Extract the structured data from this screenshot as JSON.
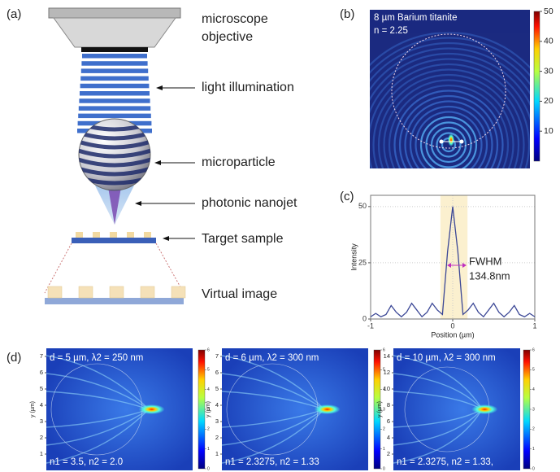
{
  "panel_a": {
    "label": "(a)",
    "annotations": [
      {
        "lines": [
          "microscope",
          "objective"
        ]
      },
      {
        "lines": [
          "light illumination"
        ]
      },
      {
        "lines": [
          "microparticle"
        ]
      },
      {
        "lines": [
          "photonic nanojet"
        ]
      },
      {
        "lines": [
          "Target sample"
        ]
      },
      {
        "lines": [
          "Virtual image"
        ]
      }
    ]
  },
  "panel_b": {
    "label": "(b)",
    "material": "8 µm Barium titanite",
    "index": "n = 2.25",
    "colorbar_lim": [
      0,
      50
    ],
    "colorbar_ticks": [
      10,
      20,
      30,
      40,
      50
    ]
  },
  "chart_data": {
    "type": "line",
    "label": "(c)",
    "xlabel": "Position (µm)",
    "ylabel": "Intensity",
    "x": [
      -1,
      -0.9375,
      -0.875,
      -0.8125,
      -0.75,
      -0.6875,
      -0.625,
      -0.5625,
      -0.5,
      -0.4375,
      -0.375,
      -0.3125,
      -0.25,
      -0.1875,
      -0.125,
      -0.0625,
      0,
      0.0625,
      0.125,
      0.1875,
      0.25,
      0.3125,
      0.375,
      0.4375,
      0.5,
      0.5625,
      0.625,
      0.6875,
      0.75,
      0.8125,
      0.875,
      0.9375,
      1
    ],
    "series": [
      {
        "color": "#3b4796",
        "values": [
          1,
          2.5,
          1,
          2,
          6,
          3,
          1,
          3,
          7,
          4,
          1,
          3,
          7,
          4,
          2,
          30,
          50,
          30,
          2,
          4,
          7,
          3,
          1,
          4,
          7,
          3,
          1,
          3,
          6,
          2,
          1,
          2.5,
          1
        ]
      }
    ],
    "xlim": [
      -1,
      1
    ],
    "ylim": [
      0,
      55
    ],
    "xticks": [
      -1,
      0,
      1
    ],
    "yticks": [
      0,
      25,
      50
    ],
    "grid": true,
    "highlight": [
      -0.15,
      0.18
    ],
    "annotation": [
      "FWHM",
      "134.8nm"
    ]
  },
  "panel_d": {
    "label": "(d)",
    "plots": [
      {
        "title": "d = 5 µm, λ2 = 250 nm",
        "indices": "n1 = 3.5, n2 = 2.0",
        "ylabel": "y (µm)",
        "ylim": [
          0,
          7.5
        ],
        "yticks": [
          1,
          2,
          3,
          4,
          5,
          6,
          7
        ],
        "colorbar_lim": [
          0,
          6
        ],
        "colorbar_ticks": [
          0,
          1,
          2,
          3,
          4,
          5,
          6
        ]
      },
      {
        "title": "d = 6 µm, λ2 = 300 nm",
        "indices": "n1 = 2.3275, n2 = 1.33",
        "ylabel": "y (µm)",
        "ylim": [
          0,
          7.5
        ],
        "yticks": [
          1,
          2,
          3,
          4,
          5,
          6,
          7
        ],
        "colorbar_lim": [
          0,
          6
        ],
        "colorbar_ticks": [
          0,
          1,
          2,
          3,
          4,
          5,
          6
        ]
      },
      {
        "title": "d = 10 µm, λ2 = 300 nm",
        "indices": "n1 = 2.3275, n2 = 1.33,",
        "ylabel": "y (µm)",
        "ylim": [
          0,
          15
        ],
        "yticks": [
          2,
          4,
          6,
          8,
          10,
          12,
          14
        ],
        "colorbar_lim": [
          0,
          6
        ],
        "colorbar_ticks": [
          0,
          1,
          2,
          3,
          4,
          5,
          6
        ]
      }
    ]
  }
}
